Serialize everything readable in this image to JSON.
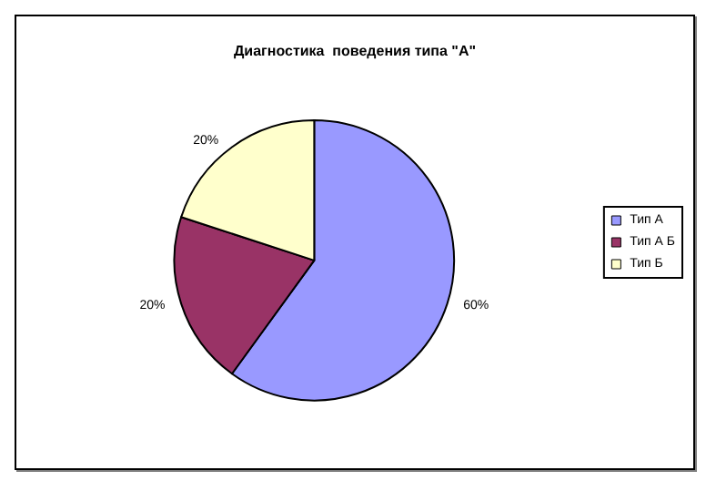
{
  "chart_data": {
    "type": "pie",
    "title": "Диагностика  поведения типа \"А\"",
    "categories": [
      "Тип А",
      "Тип А Б",
      "Тип Б"
    ],
    "values": [
      60,
      20,
      20
    ],
    "value_labels": [
      "60%",
      "20%",
      "20%"
    ],
    "colors": [
      "#9999ff",
      "#993366",
      "#ffffcc"
    ],
    "legend": "right"
  }
}
